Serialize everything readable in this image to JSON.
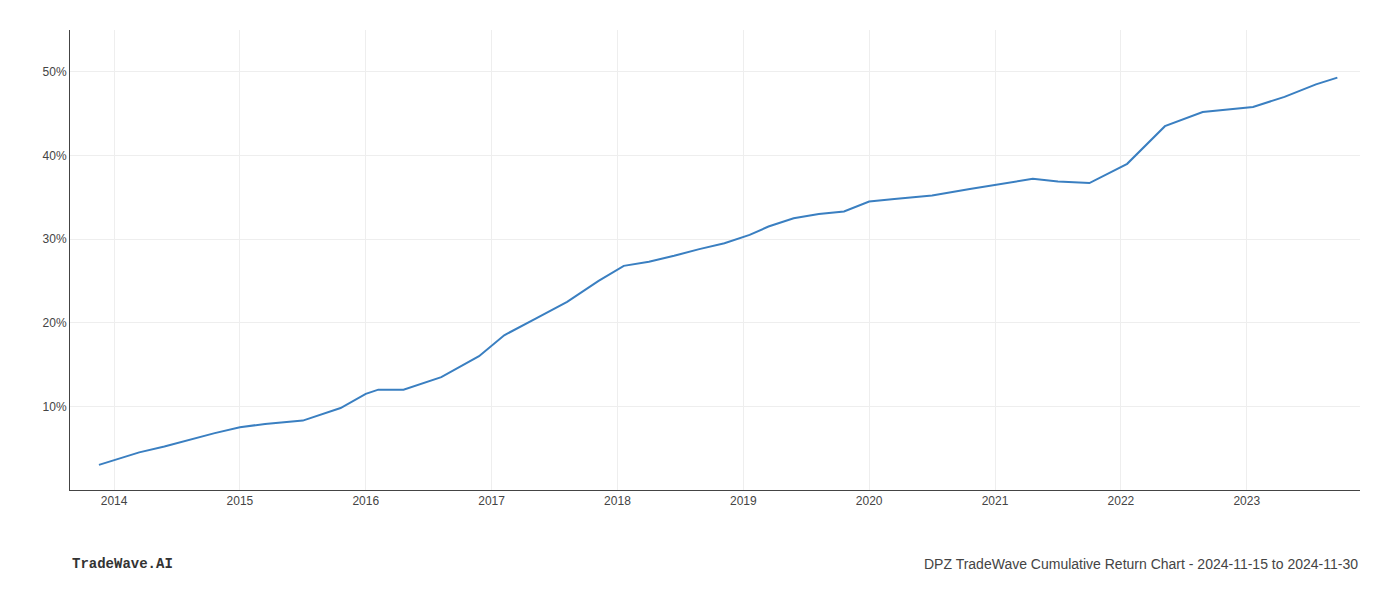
{
  "chart_data": {
    "type": "line",
    "title": "DPZ TradeWave Cumulative Return Chart - 2024-11-15 to 2024-11-30",
    "annotations": [
      "TradeWave.AI"
    ],
    "x": [
      2013.88,
      2014.05,
      2014.2,
      2014.4,
      2014.6,
      2014.8,
      2015.0,
      2015.2,
      2015.5,
      2015.8,
      2016.0,
      2016.1,
      2016.3,
      2016.6,
      2016.9,
      2017.1,
      2017.35,
      2017.6,
      2017.85,
      2018.05,
      2018.25,
      2018.45,
      2018.65,
      2018.85,
      2019.05,
      2019.2,
      2019.4,
      2019.6,
      2019.8,
      2020.0,
      2020.2,
      2020.5,
      2020.8,
      2021.0,
      2021.15,
      2021.3,
      2021.5,
      2021.75,
      2022.05,
      2022.35,
      2022.65,
      2022.85,
      2023.05,
      2023.3,
      2023.55,
      2023.72
    ],
    "values": [
      3.0,
      3.8,
      4.5,
      5.2,
      6.0,
      6.8,
      7.5,
      7.9,
      8.3,
      9.8,
      11.5,
      12.0,
      12.0,
      13.5,
      16.0,
      18.5,
      20.5,
      22.5,
      25.0,
      26.8,
      27.3,
      28.0,
      28.8,
      29.5,
      30.5,
      31.5,
      32.5,
      33.0,
      33.3,
      34.5,
      34.8,
      35.2,
      36.0,
      36.5,
      36.8,
      37.2,
      36.9,
      36.7,
      39.0,
      43.5,
      45.2,
      45.5,
      45.8,
      47.0,
      48.5,
      49.3
    ],
    "color": "#3a7fc1",
    "xlim": [
      2013.65,
      2023.9
    ],
    "xticks": [
      2014,
      2015,
      2016,
      2017,
      2018,
      2019,
      2020,
      2021,
      2022,
      2023
    ],
    "ylim": [
      0,
      55
    ],
    "yticks": [
      {
        "value": 10,
        "label": "10%"
      },
      {
        "value": 20,
        "label": "20%"
      },
      {
        "value": 30,
        "label": "30%"
      },
      {
        "value": 40,
        "label": "40%"
      },
      {
        "value": 50,
        "label": "50%"
      }
    ],
    "grid": true
  }
}
